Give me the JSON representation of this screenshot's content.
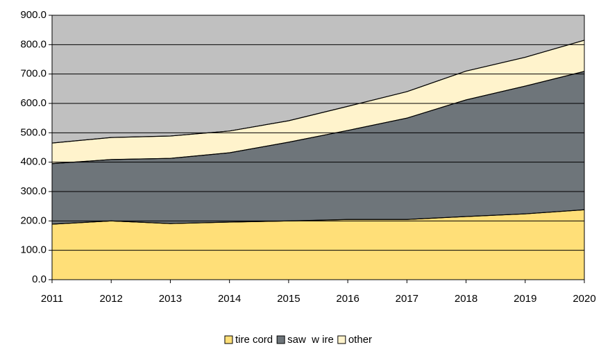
{
  "chart_data": {
    "type": "stacked_area",
    "categories": [
      "2011",
      "2012",
      "2013",
      "2014",
      "2015",
      "2016",
      "2017",
      "2018",
      "2019",
      "2020"
    ],
    "series": [
      {
        "name": "tire cord",
        "color": "#ffdf78",
        "values": [
          189,
          200,
          191,
          196,
          200,
          205,
          205,
          215,
          224,
          238
        ]
      },
      {
        "name": "saw  w ire",
        "color": "#6e757a",
        "values": [
          206,
          209,
          222,
          236,
          268,
          303,
          345,
          397,
          435,
          471
        ]
      },
      {
        "name": "other",
        "color": "#fff3cc",
        "values": [
          70,
          75,
          76,
          74,
          73,
          82,
          90,
          98,
          98,
          106
        ]
      }
    ],
    "ylim": [
      0,
      900
    ],
    "yticks": [
      {
        "value": 0,
        "label": "0.0"
      },
      {
        "value": 100,
        "label": "100.0"
      },
      {
        "value": 200,
        "label": "200.0"
      },
      {
        "value": 300,
        "label": "300.0"
      },
      {
        "value": 400,
        "label": "400.0"
      },
      {
        "value": 500,
        "label": "500.0"
      },
      {
        "value": 600,
        "label": "600.0"
      },
      {
        "value": 700,
        "label": "700.0"
      },
      {
        "value": 800,
        "label": "800.0"
      },
      {
        "value": 900,
        "label": "900.0"
      }
    ],
    "grid": true,
    "plot_background": "#c0c0c0",
    "legend": "bottom"
  }
}
